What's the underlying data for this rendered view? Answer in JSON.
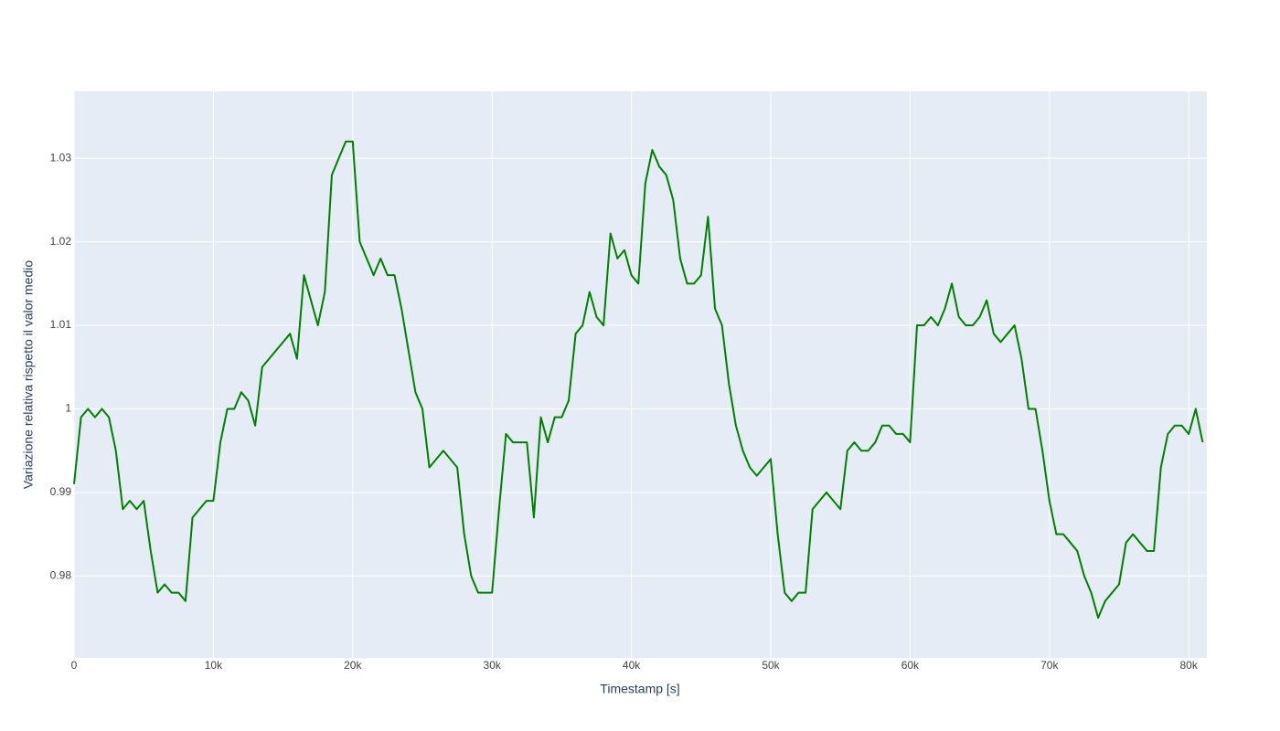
{
  "chart_data": {
    "type": "line",
    "x_label": "Timestamp [s]",
    "y_label": "Variazione relativa rispetto il valor medio",
    "x": [
      0,
      500,
      1000,
      1500,
      2000,
      2500,
      3000,
      3500,
      4000,
      4500,
      5000,
      5500,
      6000,
      6500,
      7000,
      7500,
      8000,
      8500,
      9000,
      9500,
      10000,
      10500,
      11000,
      11500,
      12000,
      12500,
      13000,
      13500,
      14000,
      14500,
      15000,
      15500,
      16000,
      16500,
      17000,
      17500,
      18000,
      18500,
      19000,
      19500,
      20000,
      20500,
      21000,
      21500,
      22000,
      22500,
      23000,
      23500,
      24000,
      24500,
      25000,
      25500,
      26000,
      26500,
      27000,
      27500,
      28000,
      28500,
      29000,
      29500,
      30000,
      30500,
      31000,
      31500,
      32000,
      32500,
      33000,
      33500,
      34000,
      34500,
      35000,
      35500,
      36000,
      36500,
      37000,
      37500,
      38000,
      38500,
      39000,
      39500,
      40000,
      40500,
      41000,
      41500,
      42000,
      42500,
      43000,
      43500,
      44000,
      44500,
      45000,
      45500,
      46000,
      46500,
      47000,
      47500,
      48000,
      48500,
      49000,
      49500,
      50000,
      50500,
      51000,
      51500,
      52000,
      52500,
      53000,
      53500,
      54000,
      54500,
      55000,
      55500,
      56000,
      56500,
      57000,
      57500,
      58000,
      58500,
      59000,
      59500,
      60000,
      60500,
      61000,
      61500,
      62000,
      62500,
      63000,
      63500,
      64000,
      64500,
      65000,
      65500,
      66000,
      66500,
      67000,
      67500,
      68000,
      68500,
      69000,
      69500,
      70000,
      70500,
      71000,
      71500,
      72000,
      72500,
      73000,
      73500,
      74000,
      74500,
      75000,
      75500,
      76000,
      76500,
      77000,
      77500,
      78000,
      78500,
      79000,
      79500,
      80000,
      80500,
      81000
    ],
    "series": [
      {
        "name": "",
        "color": "#008000",
        "values": [
          0.991,
          0.999,
          1,
          0.999,
          1,
          0.999,
          0.995,
          0.988,
          0.989,
          0.988,
          0.989,
          0.983,
          0.978,
          0.979,
          0.978,
          0.978,
          0.977,
          0.987,
          0.988,
          0.989,
          0.989,
          0.996,
          1,
          1,
          1.002,
          1.001,
          0.998,
          1.005,
          1.006,
          1.007,
          1.008,
          1.009,
          1.006,
          1.016,
          1.013,
          1.01,
          1.014,
          1.028,
          1.03,
          1.032,
          1.032,
          1.02,
          1.018,
          1.016,
          1.018,
          1.016,
          1.016,
          1.012,
          1.007,
          1.002,
          1,
          0.993,
          0.994,
          0.995,
          0.994,
          0.993,
          0.985,
          0.98,
          0.978,
          0.978,
          0.978,
          0.988,
          0.997,
          0.996,
          0.996,
          0.996,
          0.987,
          0.999,
          0.996,
          0.999,
          0.999,
          1.001,
          1.009,
          1.01,
          1.014,
          1.011,
          1.01,
          1.021,
          1.018,
          1.019,
          1.016,
          1.015,
          1.027,
          1.031,
          1.029,
          1.028,
          1.025,
          1.018,
          1.015,
          1.015,
          1.016,
          1.023,
          1.012,
          1.01,
          1.003,
          0.998,
          0.995,
          0.993,
          0.992,
          0.993,
          0.994,
          0.985,
          0.978,
          0.977,
          0.978,
          0.978,
          0.988,
          0.989,
          0.99,
          0.989,
          0.988,
          0.995,
          0.996,
          0.995,
          0.995,
          0.996,
          0.998,
          0.998,
          0.997,
          0.997,
          0.996,
          1.01,
          1.01,
          1.011,
          1.01,
          1.012,
          1.015,
          1.011,
          1.01,
          1.01,
          1.011,
          1.013,
          1.009,
          1.008,
          1.009,
          1.01,
          1.006,
          1,
          1,
          0.995,
          0.989,
          0.985,
          0.985,
          0.984,
          0.983,
          0.98,
          0.978,
          0.975,
          0.977,
          0.978,
          0.979,
          0.984,
          0.985,
          0.984,
          0.983,
          0.983,
          0.993,
          0.997,
          0.998,
          0.998,
          0.997,
          1,
          0.996
        ]
      }
    ],
    "xlim": [
      0,
      81300
    ],
    "ylim": [
      0.9702,
      1.038
    ],
    "xticks": [
      {
        "value": 0,
        "label": "0"
      },
      {
        "value": 10000,
        "label": "10k"
      },
      {
        "value": 20000,
        "label": "20k"
      },
      {
        "value": 30000,
        "label": "30k"
      },
      {
        "value": 40000,
        "label": "40k"
      },
      {
        "value": 50000,
        "label": "50k"
      },
      {
        "value": 60000,
        "label": "60k"
      },
      {
        "value": 70000,
        "label": "70k"
      },
      {
        "value": 80000,
        "label": "80k"
      }
    ],
    "yticks": [
      0.98,
      0.99,
      1,
      1.01,
      1.02,
      1.03
    ],
    "grid": true
  }
}
